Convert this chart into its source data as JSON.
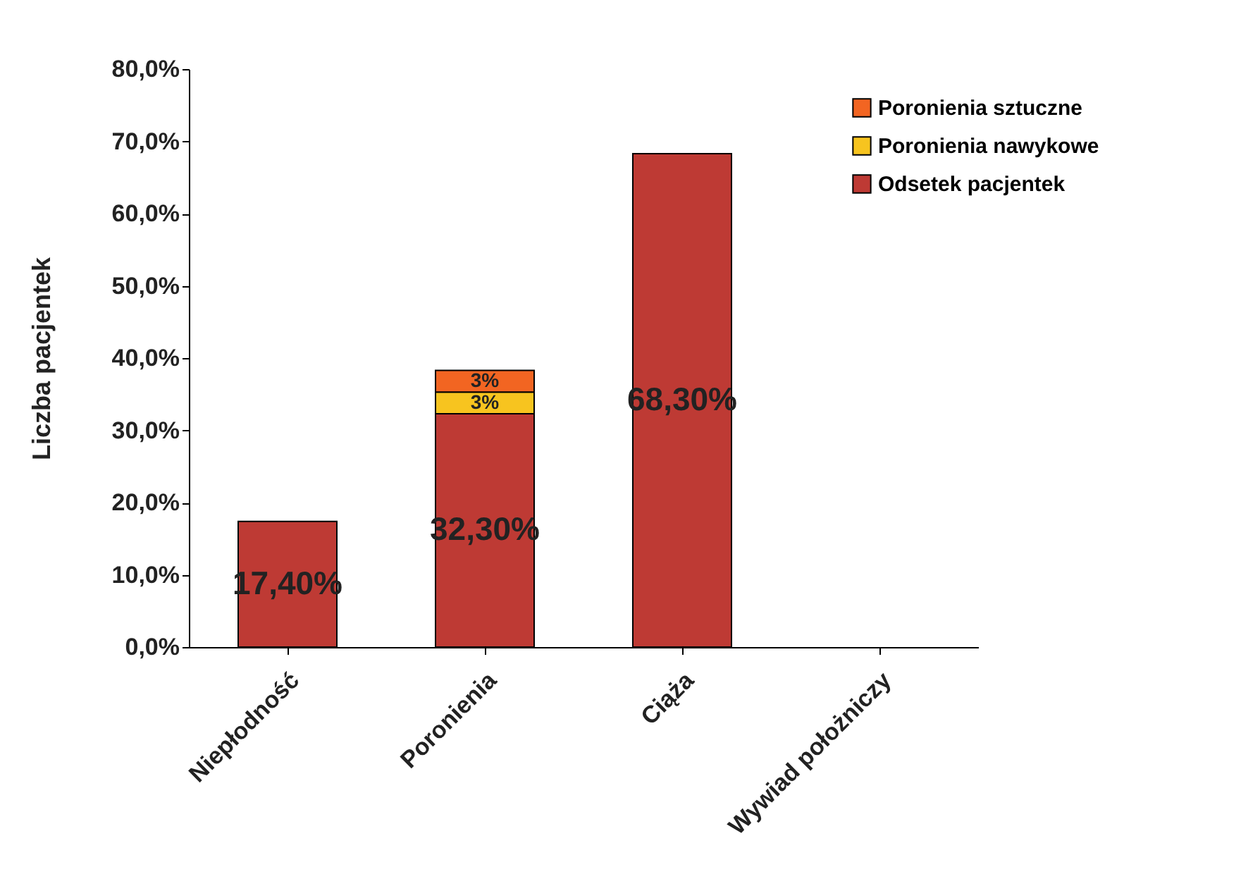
{
  "chart_data": {
    "type": "bar",
    "stacked": true,
    "ylabel": "Liczba    pacjentek",
    "categories": [
      "Niepłodność",
      "Poronienia",
      "Ciąża",
      "Wywiad położniczy"
    ],
    "series": [
      {
        "name": "Odsetek pacjentek",
        "color": "#be3a34",
        "values": [
          17.4,
          32.3,
          68.3,
          null
        ],
        "value_labels": [
          "17,40%",
          "32,30%",
          "68,30%",
          null
        ]
      },
      {
        "name": "Poronienia nawykowe",
        "color": "#f7c41f",
        "values": [
          null,
          3,
          null,
          null
        ],
        "value_labels": [
          null,
          "3%",
          null,
          null
        ]
      },
      {
        "name": "Poronienia sztuczne",
        "color": "#f26522",
        "values": [
          null,
          3,
          null,
          null
        ],
        "value_labels": [
          null,
          "3%",
          null,
          null
        ]
      }
    ],
    "ylim": [
      0,
      80
    ],
    "yticks": [
      {
        "value": 0,
        "label": "0,0%"
      },
      {
        "value": 10,
        "label": "10,0%"
      },
      {
        "value": 20,
        "label": "20,0%"
      },
      {
        "value": 30,
        "label": "30,0%"
      },
      {
        "value": 40,
        "label": "40,0%"
      },
      {
        "value": 50,
        "label": "50,0%"
      },
      {
        "value": 60,
        "label": "60,0%"
      },
      {
        "value": 70,
        "label": "70,0%"
      },
      {
        "value": 80,
        "label": "80,0%"
      }
    ],
    "grid": false,
    "legend": "top right"
  }
}
